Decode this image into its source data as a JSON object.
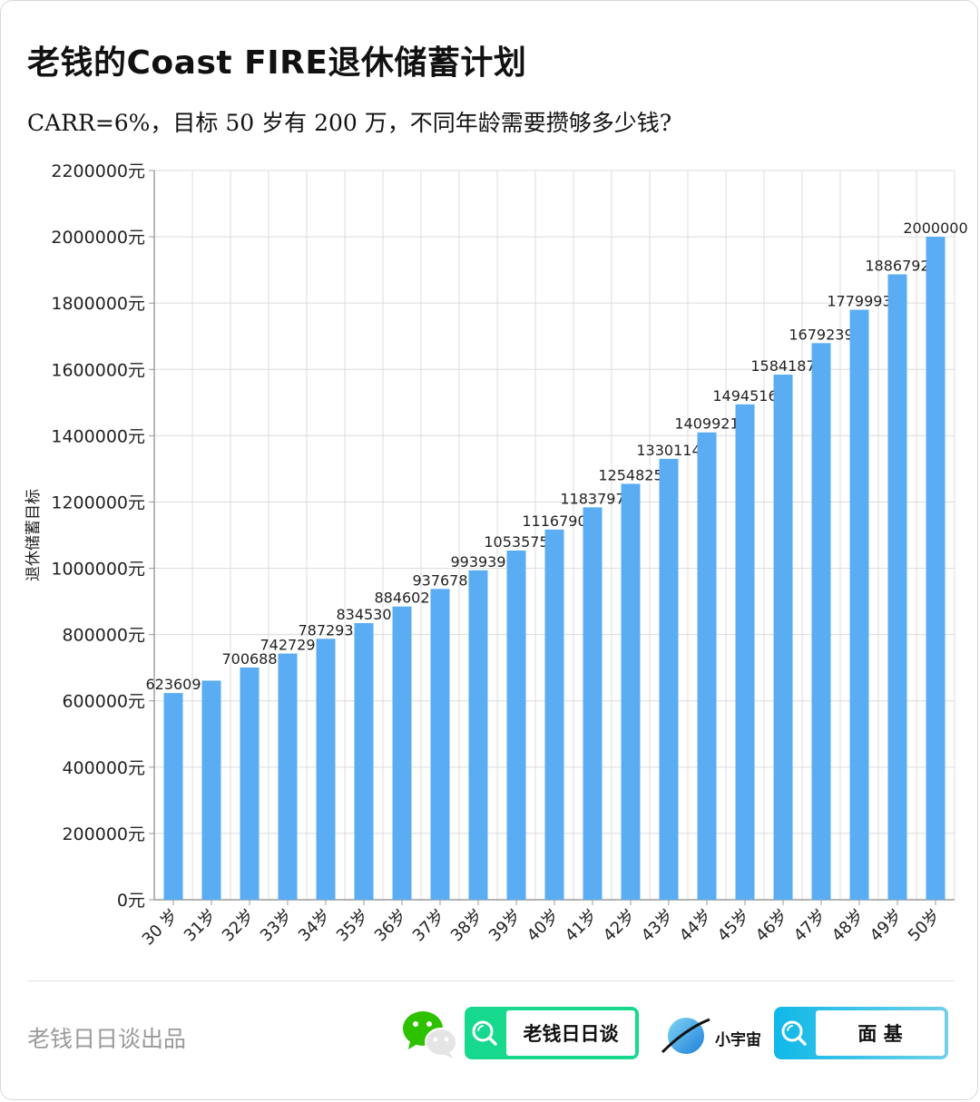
{
  "title": "老钱的Coast FIRE退休储蓄计划",
  "subtitle": "CARR=6%，目标 50 岁有 200 万，不同年龄需要攒够多少钱?",
  "chart_data": {
    "type": "bar",
    "categories": [
      "30 岁",
      "31岁",
      "32岁",
      "33岁",
      "34岁",
      "35岁",
      "36岁",
      "37岁",
      "38岁",
      "39岁",
      "40岁",
      "41岁",
      "42岁",
      "43岁",
      "44岁",
      "45岁",
      "46岁",
      "47岁",
      "48岁",
      "49岁",
      "50岁"
    ],
    "values": [
      623609,
      661026,
      700688,
      742729,
      787293,
      834530,
      884602,
      937678,
      993939,
      1053575,
      1116790,
      1183797,
      1254825,
      1330114,
      1409921,
      1494516,
      1584187,
      1679239,
      1779993,
      1886792,
      2000000
    ],
    "data_labels": [
      "623609",
      "",
      "700688",
      "742729",
      "787293",
      "834530",
      "884602",
      "937678",
      "993939",
      "1053575",
      "1116790",
      "1183797",
      "1254825",
      "1330114",
      "1409921",
      "1494516",
      "1584187",
      "1679239",
      "1779993",
      "1886792",
      "2000000"
    ],
    "ylabel": "退休储蓄目标",
    "ylim": [
      0,
      2200000
    ],
    "yticks": [
      "0元",
      "200000元",
      "400000元",
      "600000元",
      "800000元",
      "1000000元",
      "1200000元",
      "1400000元",
      "1600000元",
      "1800000元",
      "2000000元",
      "2200000元"
    ],
    "grid": true,
    "bar_color": "#5aacf3"
  },
  "footer": {
    "credit": "老钱日日谈出品",
    "wechat_icon": "wechat-icon",
    "search_icon": "search-icon",
    "wechat_account": "老钱日日谈",
    "xiaoyuzhou_icon": "planet-icon",
    "xiaoyuzhou_label": "小宇宙",
    "xiaoyuzhou_account": "面 基",
    "accent_green": "#17d98e",
    "accent_blue": "#0fb8e8"
  }
}
